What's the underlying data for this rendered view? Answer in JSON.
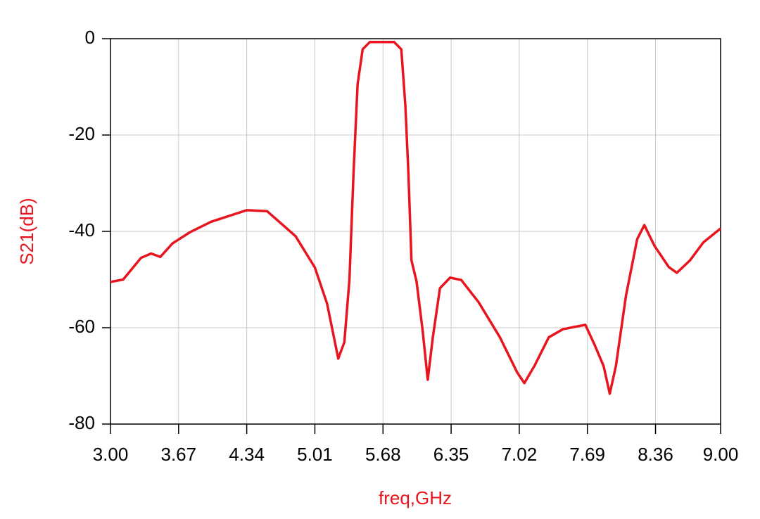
{
  "chart_data": {
    "type": "line",
    "xlabel": "freq,GHz",
    "ylabel": "S21(dB)",
    "xlim": [
      3,
      9
    ],
    "ylim": [
      -80,
      0
    ],
    "xticks": [
      {
        "value": 3,
        "label": "3.00"
      },
      3.67,
      4.34,
      5.01,
      5.68,
      6.35,
      7.02,
      7.69,
      8.36,
      {
        "value": 9,
        "label": "9.00"
      }
    ],
    "yticks": [
      0,
      -20,
      -40,
      -60,
      -80
    ],
    "grid": true,
    "series": [
      {
        "color": "#e8141e",
        "x": [
          3.0,
          3.125,
          3.3,
          3.4,
          3.49,
          3.61,
          3.78,
          3.99,
          4.34,
          4.54,
          4.82,
          5.01,
          5.13,
          5.24,
          5.3,
          5.35,
          5.39,
          5.43,
          5.48,
          5.55,
          5.79,
          5.86,
          5.9,
          5.93,
          5.96,
          6.01,
          6.07,
          6.12,
          6.17,
          6.24,
          6.34,
          6.45,
          6.62,
          6.83,
          7.0,
          7.07,
          7.17,
          7.31,
          7.45,
          7.67,
          7.76,
          7.85,
          7.91,
          7.97,
          8.07,
          8.18,
          8.25,
          8.35,
          8.49,
          8.57,
          8.7,
          8.83,
          9.0
        ],
        "values": [
          -50.5,
          -50,
          -45.5,
          -44.6,
          -45.3,
          -42.5,
          -40.2,
          -38.0,
          -35.6,
          -35.8,
          -41,
          -47.5,
          -55,
          -66.4,
          -63,
          -50,
          -28,
          -9.5,
          -2.2,
          -0.7,
          -0.7,
          -2.2,
          -13.9,
          -28,
          -46,
          -50.4,
          -60.6,
          -70.8,
          -62,
          -51.8,
          -49.6,
          -50.1,
          -54.7,
          -62,
          -69.3,
          -71.5,
          -67.9,
          -62,
          -60.3,
          -59.4,
          -63.5,
          -68,
          -73.7,
          -68,
          -53.3,
          -41.6,
          -38.7,
          -43,
          -47.4,
          -48.6,
          -46,
          -42.3,
          -39.4
        ]
      }
    ]
  }
}
